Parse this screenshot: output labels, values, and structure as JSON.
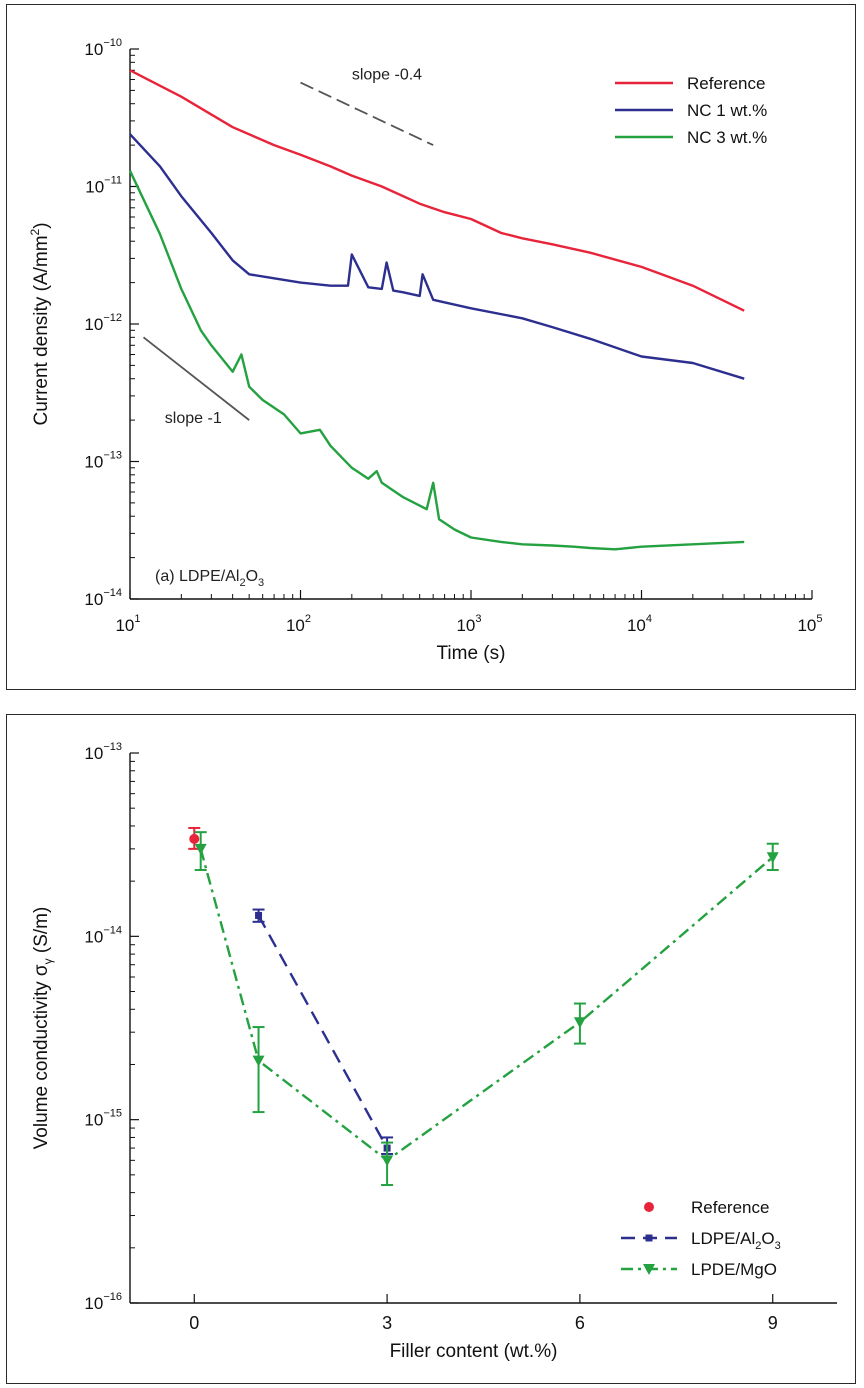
{
  "chart_data": [
    {
      "type": "line",
      "panel_label": "(a) LDPE/Al",
      "panel_label_sub1": "2",
      "panel_label_mid": "O",
      "panel_label_sub2": "3",
      "xlabel": "Time (s)",
      "ylabel_main": "Current density (A/mm",
      "ylabel_sup": "2",
      "ylabel_end": ")",
      "x_scale": "log",
      "y_scale": "log",
      "xlim": [
        10,
        100000
      ],
      "ylim": [
        1e-14,
        1e-10
      ],
      "x_ticks": [
        {
          "value": 10,
          "base": "10",
          "exp": "1"
        },
        {
          "value": 100,
          "base": "10",
          "exp": "2"
        },
        {
          "value": 1000,
          "base": "10",
          "exp": "3"
        },
        {
          "value": 10000,
          "base": "10",
          "exp": "4"
        },
        {
          "value": 100000,
          "base": "10",
          "exp": "5"
        }
      ],
      "y_ticks": [
        {
          "value": 1e-10,
          "base": "10",
          "exp": "−10"
        },
        {
          "value": 1e-11,
          "base": "10",
          "exp": "−11"
        },
        {
          "value": 1e-12,
          "base": "10",
          "exp": "−12"
        },
        {
          "value": 1e-13,
          "base": "10",
          "exp": "−13"
        },
        {
          "value": 1e-14,
          "base": "10",
          "exp": "−14"
        }
      ],
      "legend_position": "top-right",
      "series": [
        {
          "name": "Reference",
          "color": "#e8243a",
          "x": [
            10,
            20,
            40,
            70,
            100,
            150,
            200,
            300,
            500,
            700,
            1000,
            1500,
            2000,
            3000,
            5000,
            10000,
            20000,
            40000
          ],
          "y": [
            7e-11,
            4.5e-11,
            2.7e-11,
            2e-11,
            1.7e-11,
            1.4e-11,
            1.2e-11,
            1e-11,
            7.5e-12,
            6.5e-12,
            5.8e-12,
            4.6e-12,
            4.2e-12,
            3.8e-12,
            3.3e-12,
            2.6e-12,
            1.9e-12,
            1.25e-12
          ]
        },
        {
          "name": "NC 1 wt.%",
          "color": "#2c2f8f",
          "x": [
            10,
            15,
            20,
            30,
            40,
            50,
            70,
            100,
            150,
            190,
            200,
            250,
            300,
            320,
            350,
            400,
            500,
            520,
            600,
            1000,
            2000,
            3000,
            5000,
            10000,
            20000,
            40000
          ],
          "y": [
            2.4e-11,
            1.4e-11,
            8.5e-12,
            4.6e-12,
            2.9e-12,
            2.3e-12,
            2.15e-12,
            2e-12,
            1.9e-12,
            1.9e-12,
            3.2e-12,
            1.85e-12,
            1.8e-12,
            2.8e-12,
            1.75e-12,
            1.7e-12,
            1.6e-12,
            2.3e-12,
            1.5e-12,
            1.3e-12,
            1.1e-12,
            9.5e-13,
            7.8e-13,
            5.8e-13,
            5.2e-13,
            4e-13
          ]
        },
        {
          "name": "NC 3 wt.%",
          "color": "#24a140",
          "x": [
            10,
            15,
            20,
            26,
            30,
            40,
            45,
            50,
            60,
            80,
            100,
            130,
            150,
            200,
            250,
            280,
            300,
            400,
            550,
            600,
            650,
            800,
            1000,
            1500,
            2000,
            3000,
            4000,
            5000,
            7000,
            10000,
            20000,
            40000
          ],
          "y": [
            1.3e-11,
            4.5e-12,
            1.8e-12,
            9e-13,
            7e-13,
            4.5e-13,
            6e-13,
            3.5e-13,
            2.8e-13,
            2.2e-13,
            1.6e-13,
            1.7e-13,
            1.3e-13,
            9e-14,
            7.5e-14,
            8.5e-14,
            7e-14,
            5.5e-14,
            4.5e-14,
            7e-14,
            3.8e-14,
            3.2e-14,
            2.8e-14,
            2.6e-14,
            2.5e-14,
            2.45e-14,
            2.4e-14,
            2.35e-14,
            2.3e-14,
            2.4e-14,
            2.5e-14,
            2.6e-14
          ]
        }
      ],
      "annotations": [
        {
          "text": "slope -0.4",
          "x1": 100,
          "y1": 5.7e-11,
          "x2": 600,
          "y2": 2e-11,
          "tx": 200,
          "ty": 6e-11,
          "dashed": true
        },
        {
          "text": "slope -1",
          "x1": 12,
          "y1": 8e-13,
          "x2": 50,
          "y2": 2e-13,
          "tx": 16,
          "ty": 1.9e-13,
          "dashed": false
        }
      ]
    },
    {
      "type": "scatter",
      "xlabel": "Filler content (wt.%)",
      "ylabel_main": "Volume conductivity σ",
      "ylabel_sub": "γ",
      "ylabel_end": " (S/m)",
      "x_scale": "linear",
      "y_scale": "log",
      "xlim": [
        -1,
        10
      ],
      "ylim": [
        1e-16,
        1e-13
      ],
      "x_ticks": [
        {
          "value": 0,
          "label": "0"
        },
        {
          "value": 3,
          "label": "3"
        },
        {
          "value": 6,
          "label": "6"
        },
        {
          "value": 9,
          "label": "9"
        }
      ],
      "y_ticks": [
        {
          "value": 1e-13,
          "base": "10",
          "exp": "−13"
        },
        {
          "value": 1e-14,
          "base": "10",
          "exp": "−14"
        },
        {
          "value": 1e-15,
          "base": "10",
          "exp": "−15"
        },
        {
          "value": 1e-16,
          "base": "10",
          "exp": "−16"
        }
      ],
      "legend_position": "bottom-right",
      "series": [
        {
          "name": "Reference",
          "color": "#e8243a",
          "marker": "circle",
          "line": "none",
          "x": [
            0
          ],
          "y": [
            3.4e-14
          ],
          "err_low": [
            3e-14
          ],
          "err_high": [
            3.9e-14
          ]
        },
        {
          "name_main": "LDPE/Al",
          "name_sub1": "2",
          "name_mid": "O",
          "name_sub2": "3",
          "color": "#2c2f8f",
          "marker": "square",
          "line": "dashed",
          "x": [
            1,
            3
          ],
          "y": [
            1.3e-14,
            7e-16
          ],
          "err_low": [
            1.2e-14,
            6.5e-16
          ],
          "err_high": [
            1.4e-14,
            8e-16
          ]
        },
        {
          "name": "LPDE/MgO",
          "color": "#24a140",
          "marker": "triangle-down",
          "line": "dashdot",
          "x": [
            0.1,
            1,
            3,
            6,
            9
          ],
          "y": [
            3e-14,
            2.1e-15,
            6e-16,
            3.4e-15,
            2.7e-14
          ],
          "err_low": [
            2.3e-14,
            1.1e-15,
            4.4e-16,
            2.6e-15,
            2.3e-14
          ],
          "err_high": [
            3.7e-14,
            3.2e-15,
            7.5e-16,
            4.3e-15,
            3.2e-14
          ]
        }
      ]
    }
  ]
}
